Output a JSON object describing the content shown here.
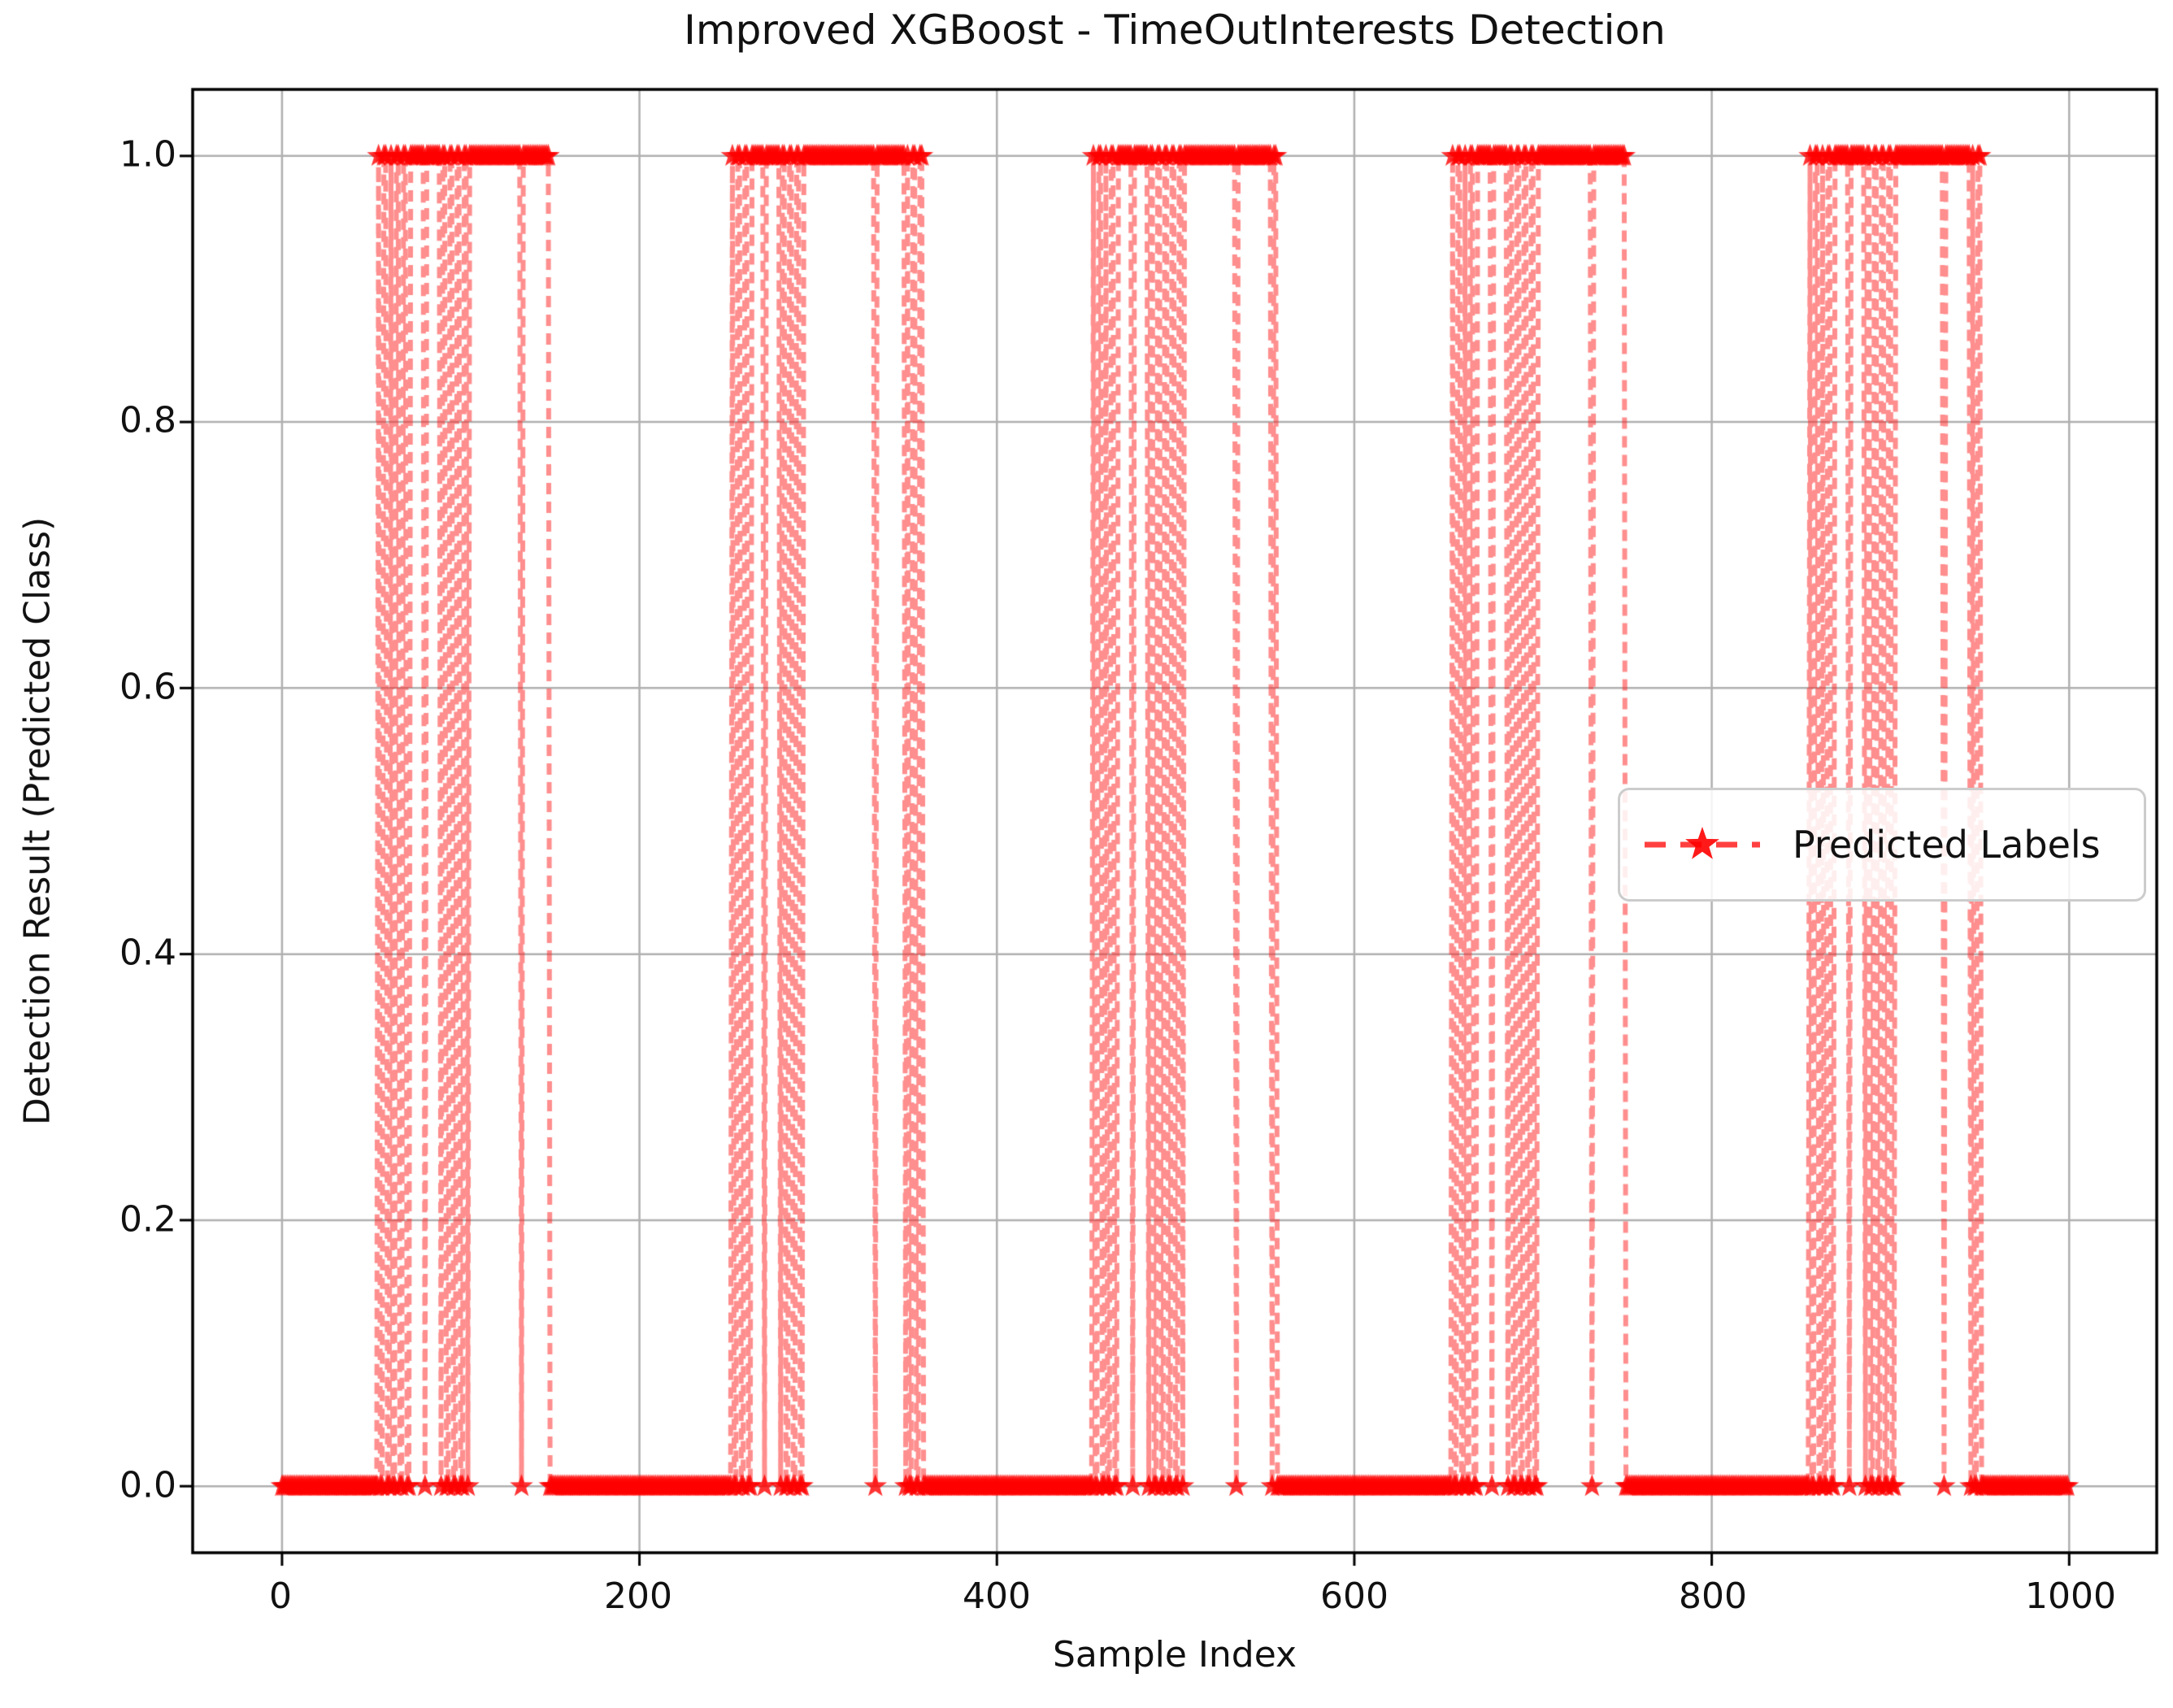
{
  "figure": {
    "title": "Improved XGBoost - TimeOutInterests Detection",
    "xlabel": "Sample Index",
    "ylabel": "Detection Result (Predicted Class)"
  },
  "legend": {
    "entries": [
      {
        "label": "Predicted Labels",
        "marker": "star",
        "linestyle": "dashed",
        "color": "#ff0000"
      }
    ]
  },
  "colors": {
    "series_red": "#ff0000",
    "series_line_rgba": "rgba(255,30,30,0.5)",
    "series_marker_rgba": "rgba(255,0,0,0.8)",
    "grid": "#b0b0b0",
    "spine": "#000000",
    "legend_border": "#cccccc",
    "text": "#111111"
  },
  "chart_data": {
    "type": "line",
    "title": "Improved XGBoost - TimeOutInterests Detection",
    "xlabel": "Sample Index",
    "ylabel": "Detection Result (Predicted Class)",
    "series_name": "Predicted Labels",
    "marker": "star",
    "linestyle": "dashed",
    "grid": true,
    "legend_position": "center-right",
    "xlim": [
      -50,
      1049
    ],
    "ylim": [
      -0.05,
      1.05
    ],
    "xticks": [
      "0",
      "200",
      "400",
      "600",
      "800",
      "1000"
    ],
    "xtick_values": [
      0,
      200,
      400,
      600,
      800,
      1000
    ],
    "yticks": [
      "0.0",
      "0.2",
      "0.4",
      "0.6",
      "0.8",
      "1.0"
    ],
    "ytick_values": [
      0.0,
      0.2,
      0.4,
      0.6,
      0.8,
      1.0
    ],
    "n_samples": 1000,
    "default_value": 0,
    "one_intervals": [
      [
        54,
        54
      ],
      [
        57,
        58
      ],
      [
        61,
        61
      ],
      [
        64,
        65
      ],
      [
        68,
        69
      ],
      [
        72,
        79
      ],
      [
        81,
        88
      ],
      [
        90,
        91
      ],
      [
        94,
        95
      ],
      [
        98,
        99
      ],
      [
        102,
        103
      ],
      [
        105,
        133
      ],
      [
        135,
        149
      ],
      [
        252,
        252
      ],
      [
        255,
        256
      ],
      [
        259,
        260
      ],
      [
        263,
        269
      ],
      [
        271,
        278
      ],
      [
        280,
        281
      ],
      [
        284,
        285
      ],
      [
        288,
        289
      ],
      [
        292,
        331
      ],
      [
        333,
        348
      ],
      [
        350,
        350
      ],
      [
        353,
        354
      ],
      [
        357,
        358
      ],
      [
        454,
        454
      ],
      [
        457,
        458
      ],
      [
        461,
        461
      ],
      [
        464,
        465
      ],
      [
        468,
        475
      ],
      [
        477,
        484
      ],
      [
        486,
        487
      ],
      [
        490,
        491
      ],
      [
        494,
        495
      ],
      [
        498,
        499
      ],
      [
        502,
        503
      ],
      [
        505,
        533
      ],
      [
        535,
        553
      ],
      [
        555,
        556
      ],
      [
        655,
        655
      ],
      [
        658,
        659
      ],
      [
        662,
        662
      ],
      [
        665,
        666
      ],
      [
        669,
        676
      ],
      [
        678,
        685
      ],
      [
        687,
        688
      ],
      [
        691,
        692
      ],
      [
        695,
        696
      ],
      [
        699,
        700
      ],
      [
        703,
        732
      ],
      [
        734,
        751
      ],
      [
        855,
        855
      ],
      [
        858,
        859
      ],
      [
        862,
        862
      ],
      [
        865,
        866
      ],
      [
        869,
        876
      ],
      [
        878,
        885
      ],
      [
        887,
        888
      ],
      [
        891,
        892
      ],
      [
        895,
        896
      ],
      [
        899,
        900
      ],
      [
        903,
        929
      ],
      [
        931,
        944
      ],
      [
        946,
        946
      ],
      [
        949,
        950
      ]
    ]
  }
}
